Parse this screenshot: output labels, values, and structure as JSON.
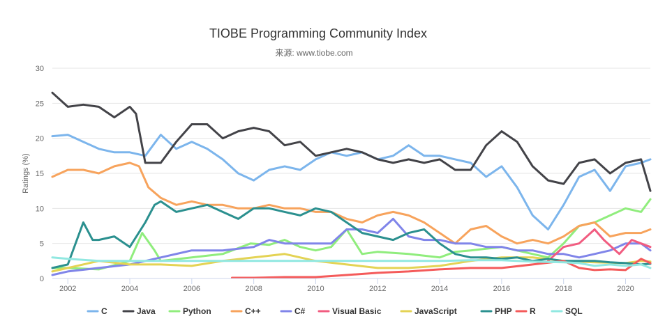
{
  "chart_data": {
    "type": "line",
    "title": "TIOBE Programming Community Index",
    "subtitle": "来源: www.tiobe.com",
    "ylabel": "Ratings (%)",
    "xlabel": "",
    "ylim": [
      0,
      30
    ],
    "xlim": [
      2001.5,
      2020.8
    ],
    "yticks": [
      0,
      5,
      10,
      15,
      20,
      25,
      30
    ],
    "xticks": [
      2002,
      2004,
      2006,
      2008,
      2010,
      2012,
      2014,
      2016,
      2018,
      2020
    ],
    "grid": true,
    "legend": "bottom",
    "series": [
      {
        "name": "C",
        "color": "#7cb5ec",
        "x": [
          2001.5,
          2002,
          2002.5,
          2003,
          2003.5,
          2004,
          2004.5,
          2005,
          2005.5,
          2006,
          2006.5,
          2007,
          2007.5,
          2008,
          2008.5,
          2009,
          2009.5,
          2010,
          2010.5,
          2011,
          2011.5,
          2012,
          2012.5,
          2013,
          2013.5,
          2014,
          2014.5,
          2015,
          2015.5,
          2016,
          2016.5,
          2017,
          2017.5,
          2018,
          2018.5,
          2019,
          2019.5,
          2020,
          2020.5,
          2020.8
        ],
        "y": [
          20.3,
          20.5,
          19.5,
          18.5,
          18.0,
          18.0,
          17.5,
          20.5,
          18.5,
          19.5,
          18.5,
          17.0,
          15.0,
          14.0,
          15.5,
          16.0,
          15.5,
          17.0,
          18.0,
          17.5,
          18.0,
          17.0,
          17.5,
          19.0,
          17.5,
          17.5,
          17.0,
          16.5,
          14.5,
          16.0,
          13.0,
          9.0,
          7.0,
          10.5,
          14.5,
          15.5,
          12.5,
          16.0,
          16.5,
          17.0
        ]
      },
      {
        "name": "Java",
        "color": "#434348",
        "x": [
          2001.5,
          2002,
          2002.5,
          2003,
          2003.5,
          2004,
          2004.2,
          2004.5,
          2005,
          2005.5,
          2006,
          2006.5,
          2007,
          2007.5,
          2008,
          2008.5,
          2009,
          2009.5,
          2010,
          2010.5,
          2011,
          2011.5,
          2012,
          2012.5,
          2013,
          2013.5,
          2014,
          2014.5,
          2015,
          2015.5,
          2016,
          2016.5,
          2017,
          2017.5,
          2018,
          2018.5,
          2019,
          2019.5,
          2020,
          2020.5,
          2020.8
        ],
        "y": [
          26.5,
          24.5,
          24.8,
          24.5,
          23.0,
          24.5,
          23.5,
          16.5,
          16.5,
          19.5,
          22.0,
          22.0,
          20.0,
          21.0,
          21.5,
          21.0,
          19.0,
          19.5,
          17.5,
          18.0,
          18.5,
          18.0,
          17.0,
          16.5,
          17.0,
          16.5,
          17.0,
          15.5,
          15.5,
          19.0,
          21.0,
          19.5,
          16.0,
          14.0,
          13.5,
          16.5,
          17.0,
          15.0,
          16.5,
          17.0,
          12.5
        ]
      },
      {
        "name": "Python",
        "color": "#90ed7d",
        "x": [
          2001.5,
          2002,
          2003,
          2004,
          2004.4,
          2004.8,
          2005,
          2006,
          2007,
          2007.9,
          2008.5,
          2009,
          2009.5,
          2010,
          2010.5,
          2011,
          2011.5,
          2012,
          2013,
          2014,
          2014.5,
          2015,
          2016,
          2017,
          2017.5,
          2018,
          2018.5,
          2019,
          2019.5,
          2020,
          2020.5,
          2020.8
        ],
        "y": [
          1.5,
          1.5,
          1.3,
          2.5,
          6.5,
          4.0,
          2.5,
          3.0,
          3.5,
          5.0,
          4.8,
          5.5,
          4.5,
          4.0,
          4.5,
          7.0,
          3.5,
          3.8,
          3.5,
          3.0,
          3.8,
          4.0,
          4.5,
          3.5,
          3.0,
          5.0,
          7.5,
          8.0,
          9.0,
          10.0,
          9.5,
          11.3
        ]
      },
      {
        "name": "C++",
        "color": "#f7a35c",
        "x": [
          2001.5,
          2002,
          2002.5,
          2003,
          2003.5,
          2004,
          2004.3,
          2004.6,
          2005,
          2005.5,
          2006,
          2006.5,
          2007,
          2007.5,
          2008,
          2008.5,
          2009,
          2009.5,
          2010,
          2010.5,
          2011,
          2011.5,
          2012,
          2012.5,
          2013,
          2013.5,
          2014,
          2014.5,
          2015,
          2015.5,
          2016,
          2016.5,
          2017,
          2017.5,
          2018,
          2018.5,
          2019,
          2019.5,
          2020,
          2020.5,
          2020.8
        ],
        "y": [
          14.5,
          15.5,
          15.5,
          15.0,
          16.0,
          16.5,
          16.0,
          13.0,
          11.5,
          10.5,
          11.0,
          10.5,
          10.5,
          10.0,
          10.0,
          10.5,
          10.0,
          10.0,
          9.5,
          9.5,
          8.5,
          8.0,
          9.0,
          9.5,
          9.0,
          8.0,
          6.5,
          5.0,
          7.0,
          7.5,
          6.0,
          5.0,
          5.5,
          5.0,
          6.0,
          7.5,
          8.0,
          6.0,
          6.5,
          6.5,
          7.0
        ]
      },
      {
        "name": "C#",
        "color": "#8085e9",
        "x": [
          2001.5,
          2002,
          2003,
          2004,
          2004.5,
          2005,
          2006,
          2007,
          2008,
          2008.5,
          2009,
          2010,
          2010.5,
          2011,
          2011.5,
          2012,
          2012.5,
          2013,
          2013.5,
          2014,
          2014.5,
          2015,
          2015.5,
          2016,
          2016.5,
          2017,
          2017.5,
          2018,
          2018.5,
          2019,
          2019.5,
          2020,
          2020.5,
          2020.8
        ],
        "y": [
          0.5,
          1.0,
          1.5,
          2.0,
          2.5,
          3.0,
          4.0,
          4.0,
          4.5,
          5.5,
          5.0,
          5.0,
          5.0,
          7.0,
          7.0,
          6.5,
          8.5,
          6.0,
          5.5,
          5.5,
          5.0,
          5.0,
          4.5,
          4.5,
          4.0,
          4.0,
          3.5,
          3.5,
          3.0,
          3.5,
          4.0,
          5.0,
          5.0,
          4.0
        ]
      },
      {
        "name": "Visual Basic",
        "color": "#f15c80",
        "x": [
          2017.5,
          2018,
          2018.5,
          2019,
          2019.3,
          2019.8,
          2020.2,
          2020.5,
          2020.8
        ],
        "y": [
          2.5,
          4.5,
          5.0,
          7.0,
          5.5,
          3.5,
          5.5,
          5.0,
          4.5
        ]
      },
      {
        "name": "JavaScript",
        "color": "#e4d354",
        "x": [
          2001.5,
          2002,
          2003,
          2004,
          2005,
          2006,
          2007,
          2008,
          2009,
          2010,
          2011,
          2012,
          2013,
          2014,
          2015,
          2016,
          2017,
          2018,
          2019,
          2020,
          2020.5,
          2020.8
        ],
        "y": [
          1.0,
          1.5,
          2.5,
          2.0,
          2.0,
          1.8,
          2.5,
          3.0,
          3.5,
          2.5,
          2.0,
          1.5,
          1.5,
          1.8,
          2.5,
          3.0,
          3.0,
          2.5,
          2.3,
          2.2,
          2.5,
          2.4
        ]
      },
      {
        "name": "PHP",
        "color": "#2b908f",
        "x": [
          2001.5,
          2002,
          2002.5,
          2002.8,
          2003,
          2003.5,
          2004,
          2004.5,
          2004.8,
          2005,
          2005.5,
          2006,
          2006.5,
          2007,
          2007.5,
          2008,
          2008.5,
          2009,
          2009.5,
          2010,
          2010.5,
          2011,
          2011.5,
          2012,
          2012.5,
          2013,
          2013.5,
          2014,
          2014.5,
          2015,
          2015.5,
          2016,
          2016.5,
          2017,
          2017.5,
          2018,
          2018.5,
          2019,
          2019.5,
          2020,
          2020.5,
          2020.8
        ],
        "y": [
          1.5,
          2.0,
          8.0,
          5.5,
          5.5,
          6.0,
          4.5,
          8.0,
          10.5,
          11.0,
          9.5,
          10.0,
          10.5,
          9.5,
          8.5,
          10.0,
          10.0,
          9.5,
          9.0,
          10.0,
          9.5,
          8.0,
          6.5,
          6.0,
          5.5,
          6.5,
          7.0,
          5.0,
          3.5,
          3.0,
          3.0,
          2.8,
          3.0,
          2.5,
          2.8,
          2.5,
          2.5,
          2.5,
          2.3,
          2.2,
          2.0,
          2.1
        ]
      },
      {
        "name": "R",
        "color": "#f45b5b",
        "x": [
          2007.3,
          2008,
          2009,
          2010,
          2011,
          2012,
          2013,
          2014,
          2015,
          2016,
          2017,
          2018,
          2018.5,
          2019,
          2019.5,
          2020,
          2020.5,
          2020.8
        ],
        "y": [
          0.1,
          0.1,
          0.2,
          0.2,
          0.5,
          0.8,
          1.0,
          1.3,
          1.5,
          1.5,
          2.0,
          2.5,
          1.5,
          1.2,
          1.3,
          1.2,
          2.8,
          2.2
        ]
      },
      {
        "name": "SQL",
        "color": "#91e8e1",
        "x": [
          2001.5,
          2002,
          2003,
          2004,
          2004.5,
          2013.5,
          2014,
          2015,
          2016,
          2017,
          2018,
          2018.5,
          2019,
          2019.5,
          2020,
          2020.5,
          2020.8
        ],
        "y": [
          3.0,
          2.8,
          2.5,
          2.5,
          2.5,
          2.5,
          2.5,
          2.6,
          2.6,
          2.4,
          2.3,
          2.2,
          1.8,
          2.0,
          1.8,
          2.0,
          1.5
        ]
      }
    ]
  }
}
